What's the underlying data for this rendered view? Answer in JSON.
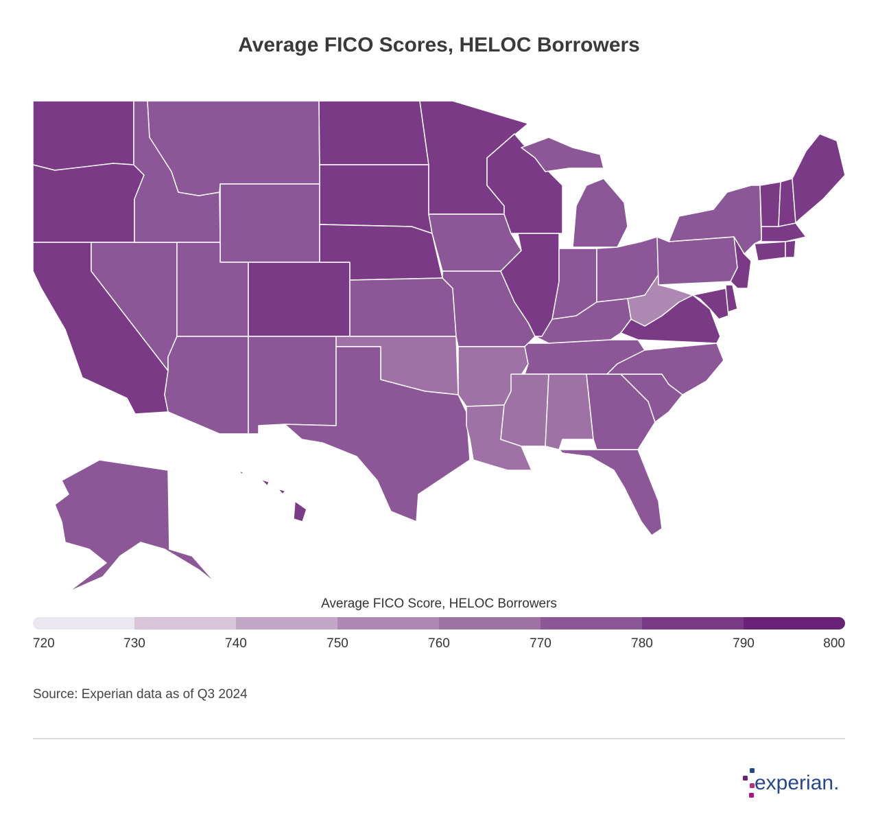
{
  "chart_data": {
    "type": "choropleth",
    "title": "Average FICO Scores, HELOC Borrowers",
    "values": [
      786,
      784,
      785,
      775,
      776,
      776,
      775,
      775,
      786,
      775,
      774,
      785,
      785,
      785,
      774,
      762,
      773,
      786,
      772,
      774,
      766,
      764,
      786,
      784,
      775,
      774,
      774,
      773,
      774,
      764,
      764,
      774,
      772,
      775,
      776,
      785,
      757,
      776,
      777,
      784,
      782,
      785,
      784,
      786,
      783,
      785,
      785,
      784,
      774,
      784
    ],
    "colorbar": {
      "title": "Average FICO Score, HELOC Borrowers",
      "ticks": [
        720,
        730,
        740,
        750,
        760,
        770,
        780,
        790,
        800
      ],
      "colors": [
        "#ebe7ef",
        "#d9c6da",
        "#c2a6c6",
        "#ad88b2",
        "#9e72a5",
        "#8b5797",
        "#7b3a86",
        "#6a2278"
      ]
    },
    "source": "Source: Experian data as of Q3 2024",
    "logo": "experian."
  }
}
